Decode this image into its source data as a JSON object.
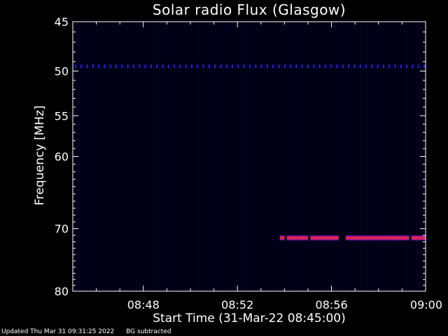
{
  "footer": {
    "updated": "Updated Thu Mar 31 09:31:25 2022",
    "note": "BG subtracted"
  },
  "colors": {
    "background": "#000000",
    "plot_background": "#00001a",
    "axis": "#ffffff",
    "emission_core": "#ff2a2a",
    "emission_edge": "#8a1ae0",
    "interference": "#2020ff"
  },
  "chart_data": {
    "type": "heatmap",
    "title": "Solar radio Flux (Glasgow)",
    "xlabel": "Start Time (31-Mar-22 08:45:00)",
    "ylabel": "Frequency [MHz]",
    "x_tick_labels": [
      "08:48",
      "08:52",
      "08:56",
      "09:00"
    ],
    "x_ticks_min": [
      48,
      52,
      56,
      60
    ],
    "xlim_min": [
      45,
      60
    ],
    "y_tick_labels": [
      "45",
      "50",
      "55",
      "60",
      "70",
      "80"
    ],
    "y_ticks": [
      45,
      50,
      55,
      60,
      70,
      80
    ],
    "ylim": [
      45,
      80
    ],
    "y_scale": "log",
    "interference_line": {
      "freq_mhz": 49.5,
      "start_min": 45,
      "end_min": 60
    },
    "emission_band": {
      "freq_mhz": 71.4,
      "segments_min": [
        [
          53.8,
          54.0
        ],
        [
          54.1,
          54.5
        ],
        [
          54.5,
          55.0
        ],
        [
          55.1,
          56.3
        ],
        [
          56.6,
          59.3
        ],
        [
          59.4,
          60.0
        ]
      ]
    }
  }
}
